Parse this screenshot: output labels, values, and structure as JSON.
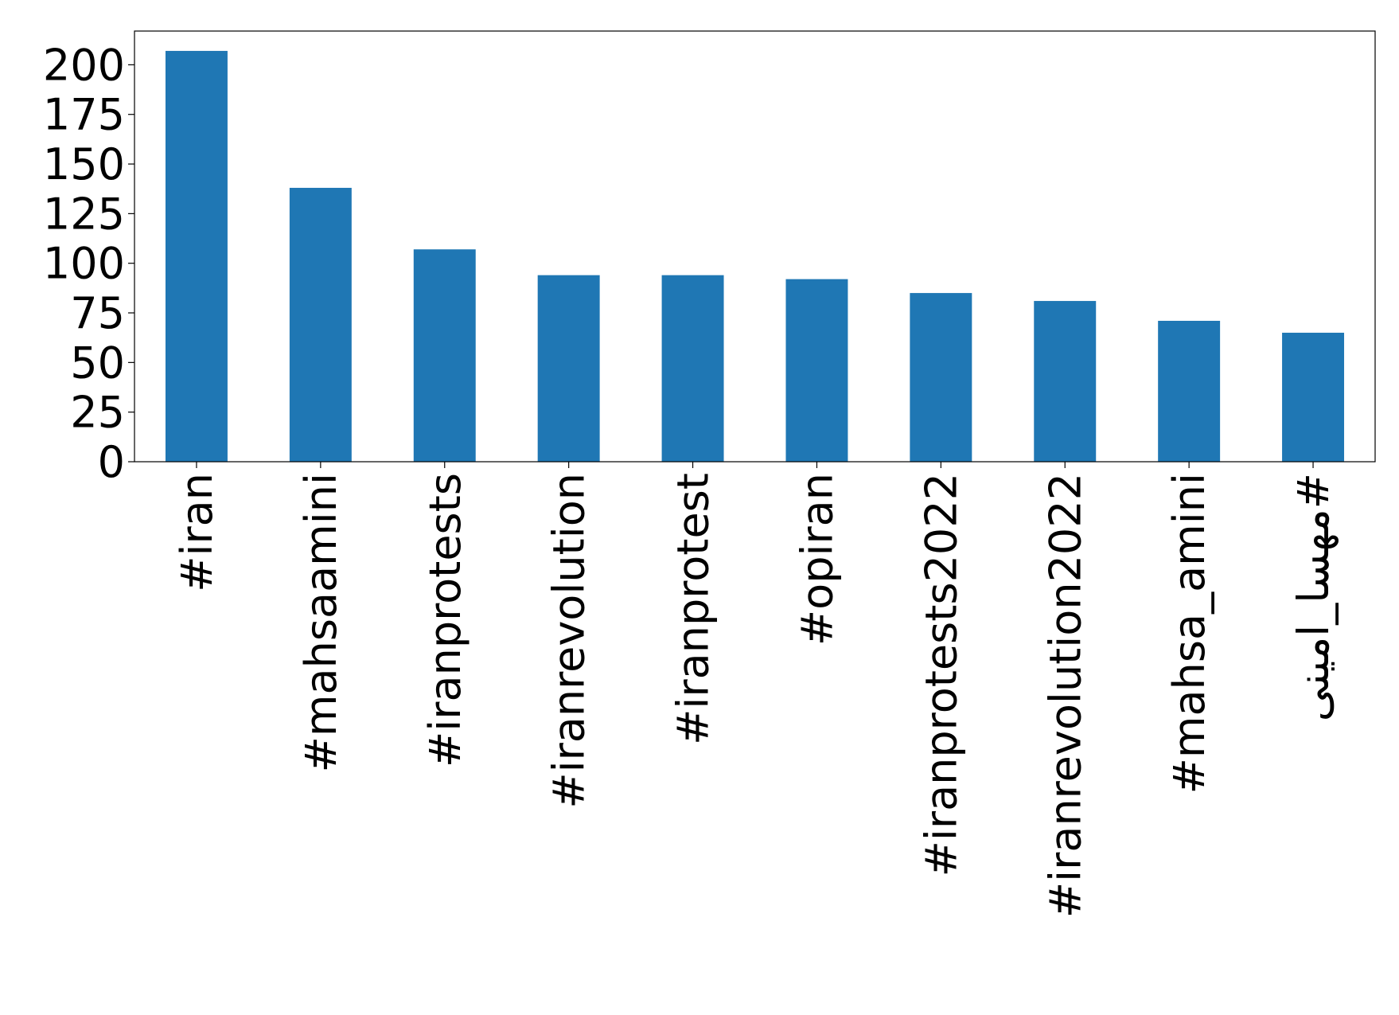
{
  "chart_data": {
    "type": "bar",
    "categories": [
      "#iran",
      "#mahsaamini",
      "#iranprotests",
      "#iranrevolution",
      "#iranprotest",
      "#opiran",
      "#iranprotests2022",
      "#iranrevolution2022",
      "#mahsa_amini",
      "#مهسا_امینی"
    ],
    "values": [
      207,
      138,
      107,
      94,
      94,
      92,
      85,
      81,
      71,
      65
    ],
    "color": "#1f77b4",
    "ylim": [
      0,
      217
    ],
    "yticks": [
      0,
      25,
      50,
      75,
      100,
      125,
      150,
      175,
      200
    ],
    "grid": false
  }
}
